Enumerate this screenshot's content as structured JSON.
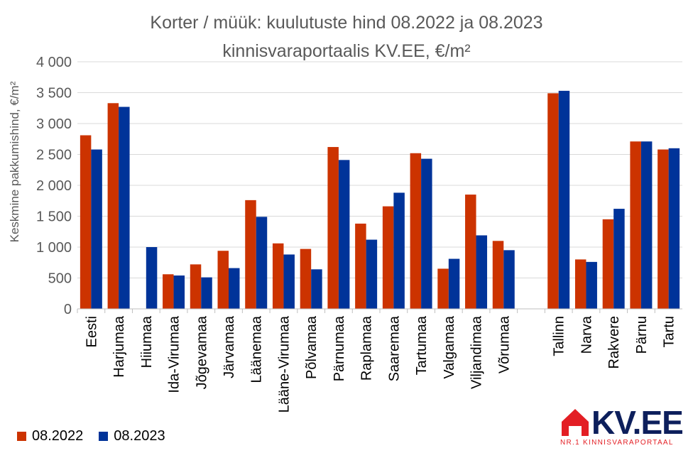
{
  "chart_data": {
    "type": "bar",
    "title_line1": "Korter / müük: kuulutuste hind 08.2022 ja 08.2023",
    "title_line2": "kinnisvaraportaalis KV.EE, €/m²",
    "ylabel": "Keskmine pakkumishind, €/m²",
    "xlabel": "",
    "ylim": [
      0,
      4000
    ],
    "yticks": [
      0,
      500,
      1000,
      1500,
      2000,
      2500,
      3000,
      3500,
      4000
    ],
    "ytick_labels": [
      "0",
      "500",
      "1 000",
      "1 500",
      "2 000",
      "2 500",
      "3 000",
      "3 500",
      "4 000"
    ],
    "grid": true,
    "legend_position": "bottom-left",
    "categories": [
      "Eesti",
      "Harjumaa",
      "Hiiumaa",
      "Ida-Virumaa",
      "Jõgevamaa",
      "Järvamaa",
      "Läänemaa",
      "Lääne-Virumaa",
      "Põlvamaa",
      "Pärnumaa",
      "Raplamaa",
      "Saaremaa",
      "Tartumaa",
      "Valgamaa",
      "Viljandimaa",
      "Võrumaa",
      "",
      "Tallinn",
      "Narva",
      "Rakvere",
      "Pärnu",
      "Tartu"
    ],
    "series": [
      {
        "name": "08.2022",
        "color": "#cc3300",
        "values": [
          2810,
          3330,
          null,
          560,
          720,
          940,
          1760,
          1060,
          970,
          2620,
          1380,
          1660,
          2520,
          650,
          1850,
          1100,
          null,
          3490,
          800,
          1450,
          2710,
          2580
        ]
      },
      {
        "name": "08.2023",
        "color": "#003399",
        "values": [
          2580,
          3270,
          1000,
          540,
          510,
          660,
          1490,
          880,
          640,
          2410,
          1120,
          1880,
          2430,
          810,
          1190,
          950,
          null,
          3530,
          760,
          1620,
          2710,
          2600
        ]
      }
    ]
  },
  "logo": {
    "brand": "KV.EE",
    "tagline": "NR.1 KINNISVARAPORTAAL"
  }
}
